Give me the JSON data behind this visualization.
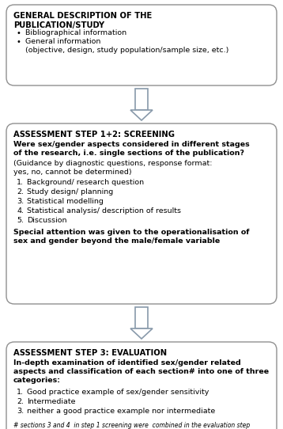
{
  "bg_color": "#ffffff",
  "border_color": "#909090",
  "arrow_color": "#8899aa",
  "box1": {
    "title": "GENERAL DESCRIPTION OF THE\nPUBLICATION/STUDY",
    "bullets": [
      "Bibliographical information",
      "General information\n(objective, design, study population/sample size, etc.)"
    ]
  },
  "box2": {
    "title": "ASSESSMENT STEP 1+2: SCREENING",
    "bold_line": "Were sex/gender aspects considered in different stages\nof the research, i.e. single sections of the publication?",
    "normal_lines": [
      "(Guidance by diagnostic questions, response format:",
      "yes, no, cannot be determined)"
    ],
    "numbered": [
      "Background/ research question",
      "Study design/ planning",
      "Statistical modelling",
      "Statistical analysis/ description of results",
      "Discussion"
    ],
    "bold_footer": "Special attention was given to the operationalisation of\nsex and gender beyond the male/female variable"
  },
  "box3": {
    "title": "ASSESSMENT STEP 3: EVALUATION",
    "bold_body": "In-depth examination of identified sex/gender related\naspects and classification of each section# into one of three\ncategories:",
    "numbered": [
      "Good practice example of sex/gender sensitivity",
      "Intermediate",
      "neither a good practice example nor intermediate"
    ],
    "footer": "# sections 3 and 4  in step 1 screening were  combined in the evaluation step"
  },
  "font_size_title": 7.2,
  "font_size_body": 6.8,
  "font_size_footer": 5.5
}
